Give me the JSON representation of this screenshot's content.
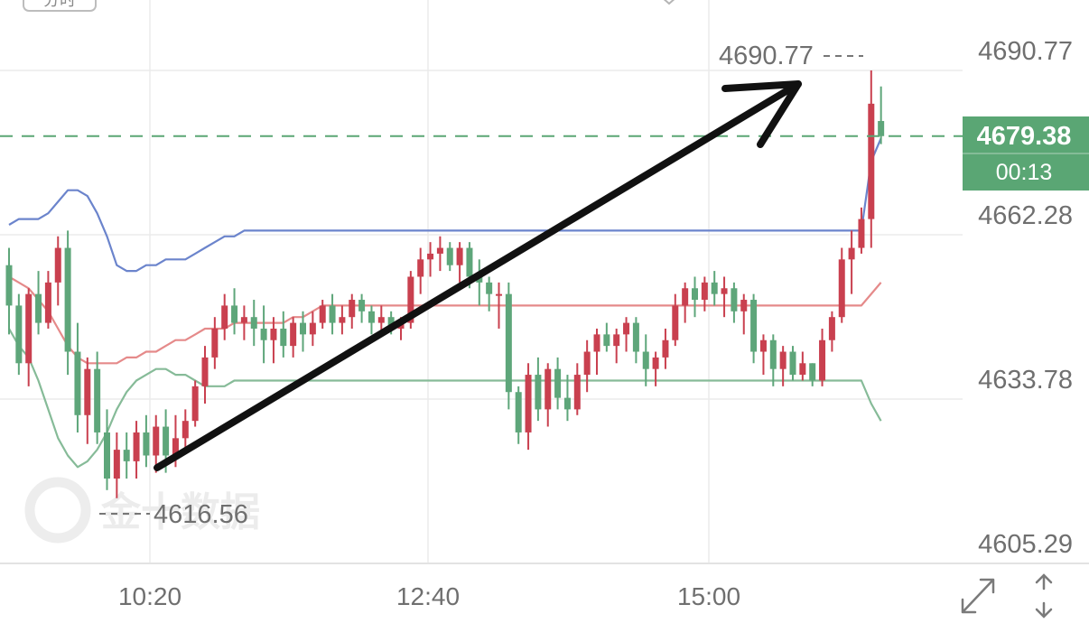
{
  "chart_data": {
    "type": "candlestick",
    "instrument_tab": "分时",
    "watermark": "金十数据",
    "x_ticks": [
      "10:20",
      "12:40",
      "15:00"
    ],
    "y_ticks": [
      4690.77,
      4662.28,
      4633.78,
      4605.29
    ],
    "ylim": [
      4605.29,
      4690.77
    ],
    "grid": true,
    "current_price": "4679.38",
    "countdown": "00:13",
    "high_label": "4690.77",
    "low_label": "4616.56",
    "colors": {
      "up": "#c9404f",
      "down": "#5ea67a",
      "upper_band": "#6b84cc",
      "middle_band": "#e58a8a",
      "lower_band": "#86bb98",
      "price_badge": "#5aa674",
      "annotation_arrow": "#111111",
      "grid": "#ebebeb"
    },
    "candles": [
      [
        4657,
        4660,
        4645,
        4650
      ],
      [
        4650,
        4652,
        4638,
        4640
      ],
      [
        4640,
        4653,
        4636,
        4652
      ],
      [
        4652,
        4656,
        4645,
        4647
      ],
      [
        4647,
        4656,
        4646,
        4654
      ],
      [
        4654,
        4662,
        4650,
        4660
      ],
      [
        4660,
        4663,
        4638,
        4642
      ],
      [
        4642,
        4647,
        4628,
        4631
      ],
      [
        4631,
        4641,
        4626,
        4639
      ],
      [
        4639,
        4642,
        4626,
        4628
      ],
      [
        4628,
        4632,
        4618,
        4620
      ],
      [
        4620,
        4628,
        4616.6,
        4625
      ],
      [
        4625,
        4628,
        4620,
        4623
      ],
      [
        4623,
        4630,
        4620,
        4628
      ],
      [
        4628,
        4631,
        4622,
        4624
      ],
      [
        4624,
        4631,
        4621,
        4629
      ],
      [
        4629,
        4632,
        4621,
        4624
      ],
      [
        4624,
        4631,
        4622,
        4627
      ],
      [
        4627,
        4632,
        4625,
        4630
      ],
      [
        4630,
        4637,
        4629,
        4636
      ],
      [
        4636,
        4643,
        4633,
        4641
      ],
      [
        4641,
        4648,
        4639,
        4646
      ],
      [
        4646,
        4652,
        4644,
        4650
      ],
      [
        4650,
        4653,
        4645,
        4647
      ],
      [
        4647,
        4650,
        4644,
        4648
      ],
      [
        4648,
        4651,
        4643,
        4646
      ],
      [
        4646,
        4650,
        4640,
        4644
      ],
      [
        4644,
        4648,
        4640,
        4646
      ],
      [
        4646,
        4649,
        4641,
        4643
      ],
      [
        4643,
        4648,
        4641,
        4647
      ],
      [
        4647,
        4649,
        4642,
        4645
      ],
      [
        4645,
        4649,
        4643,
        4647
      ],
      [
        4647,
        4651,
        4646,
        4650
      ],
      [
        4650,
        4652,
        4645,
        4647
      ],
      [
        4647,
        4650,
        4645,
        4648
      ],
      [
        4648,
        4652,
        4646,
        4651
      ],
      [
        4651,
        4652,
        4647,
        4649
      ],
      [
        4649,
        4650,
        4645,
        4647
      ],
      [
        4647,
        4650,
        4645,
        4648
      ],
      [
        4648,
        4649,
        4645,
        4646
      ],
      [
        4646,
        4648,
        4644,
        4647
      ],
      [
        4647,
        4656,
        4646,
        4655
      ],
      [
        4655,
        4660,
        4652,
        4658
      ],
      [
        4658,
        4661,
        4655,
        4659
      ],
      [
        4659,
        4662,
        4656,
        4660
      ],
      [
        4660,
        4661,
        4656,
        4657
      ],
      [
        4657,
        4661,
        4654,
        4660
      ],
      [
        4660,
        4661,
        4653,
        4655
      ],
      [
        4655,
        4658,
        4650,
        4654
      ],
      [
        4654,
        4655,
        4649,
        4652
      ],
      [
        4652,
        4654,
        4646,
        4652
      ],
      [
        4652,
        4654,
        4632,
        4635
      ],
      [
        4635,
        4636,
        4626,
        4628
      ],
      [
        4628,
        4640,
        4625,
        4638
      ],
      [
        4638,
        4641,
        4630,
        4632
      ],
      [
        4632,
        4640,
        4629,
        4639
      ],
      [
        4639,
        4641,
        4632,
        4634
      ],
      [
        4634,
        4638,
        4630,
        4632
      ],
      [
        4632,
        4640,
        4631,
        4638
      ],
      [
        4638,
        4644,
        4635,
        4642
      ],
      [
        4642,
        4646,
        4638,
        4645
      ],
      [
        4645,
        4647,
        4642,
        4643
      ],
      [
        4643,
        4646,
        4640,
        4645
      ],
      [
        4645,
        4648,
        4642,
        4647
      ],
      [
        4647,
        4648,
        4640,
        4642
      ],
      [
        4642,
        4645,
        4636,
        4639
      ],
      [
        4639,
        4642,
        4636,
        4641
      ],
      [
        4641,
        4646,
        4639,
        4644
      ],
      [
        4644,
        4652,
        4643,
        4650
      ],
      [
        4650,
        4654,
        4647,
        4653
      ],
      [
        4653,
        4655,
        4648,
        4651
      ],
      [
        4651,
        4655,
        4649,
        4654
      ],
      [
        4654,
        4656,
        4650,
        4652
      ],
      [
        4652,
        4655,
        4648,
        4653
      ],
      [
        4653,
        4654,
        4647,
        4649
      ],
      [
        4649,
        4652,
        4645,
        4651
      ],
      [
        4651,
        4652,
        4640,
        4642
      ],
      [
        4642,
        4645,
        4638,
        4644
      ],
      [
        4644,
        4645,
        4636,
        4639
      ],
      [
        4639,
        4643,
        4636,
        4642
      ],
      [
        4642,
        4643,
        4637,
        4638
      ],
      [
        4638,
        4642,
        4637,
        4640
      ],
      [
        4640,
        4640,
        4636,
        4637
      ],
      [
        4637,
        4646,
        4636,
        4644
      ],
      [
        4644,
        4649,
        4642,
        4648
      ],
      [
        4648,
        4660,
        4647,
        4658
      ],
      [
        4658,
        4663,
        4652,
        4660
      ],
      [
        4660,
        4667,
        4659,
        4665
      ],
      [
        4665,
        4690.77,
        4660,
        4685
      ],
      [
        4682,
        4688,
        4678,
        4679.38
      ]
    ],
    "bands": {
      "upper": [
        4664,
        4665,
        4665,
        4665,
        4666,
        4668,
        4670,
        4670,
        4669,
        4666,
        4662,
        4657,
        4656,
        4656,
        4657,
        4657,
        4658,
        4658,
        4658,
        4659,
        4660,
        4661,
        4662,
        4662,
        4663,
        4663,
        4663,
        4663,
        4663,
        4663,
        4663,
        4663,
        4663,
        4663,
        4663,
        4663,
        4663,
        4663,
        4663,
        4663,
        4663,
        4663,
        4663,
        4663,
        4663,
        4663,
        4663,
        4663,
        4663,
        4663,
        4663,
        4663,
        4663,
        4663,
        4663,
        4663,
        4663,
        4663,
        4663,
        4663,
        4663,
        4663,
        4663,
        4663,
        4663,
        4663,
        4663,
        4663,
        4663,
        4663,
        4663,
        4663,
        4663,
        4663,
        4663,
        4663,
        4663,
        4663,
        4663,
        4663,
        4663,
        4663,
        4663,
        4663,
        4663,
        4663,
        4663,
        4663,
        4675,
        4679
      ],
      "middle": [
        4655,
        4654,
        4653,
        4651,
        4649,
        4646,
        4643,
        4641,
        4640,
        4640,
        4640,
        4640,
        4641,
        4641,
        4642,
        4642,
        4643,
        4644,
        4644,
        4645,
        4646,
        4646,
        4646,
        4647,
        4647,
        4647,
        4647,
        4647,
        4647,
        4648,
        4648,
        4649,
        4650,
        4650,
        4650,
        4650,
        4650,
        4650,
        4650,
        4650,
        4650,
        4650,
        4650,
        4650,
        4650,
        4650,
        4650,
        4650,
        4650,
        4650,
        4650,
        4650,
        4650,
        4650,
        4650,
        4650,
        4650,
        4650,
        4650,
        4650,
        4650,
        4650,
        4650,
        4650,
        4650,
        4650,
        4650,
        4650,
        4650,
        4650,
        4650,
        4650,
        4650,
        4650,
        4650,
        4650,
        4650,
        4650,
        4650,
        4650,
        4650,
        4650,
        4650,
        4650,
        4650,
        4650,
        4650,
        4650,
        4652,
        4654
      ],
      "lower": [
        4646,
        4643,
        4641,
        4637,
        4632,
        4627,
        4624,
        4622,
        4623,
        4625,
        4628,
        4632,
        4635,
        4637,
        4638,
        4639,
        4639,
        4638,
        4638,
        4637,
        4636,
        4636,
        4636,
        4637,
        4637,
        4637,
        4637,
        4637,
        4637,
        4637,
        4637,
        4637,
        4637,
        4637,
        4637,
        4637,
        4637,
        4637,
        4637,
        4637,
        4637,
        4637,
        4637,
        4637,
        4637,
        4637,
        4637,
        4637,
        4637,
        4637,
        4637,
        4637,
        4637,
        4637,
        4637,
        4637,
        4637,
        4637,
        4637,
        4637,
        4637,
        4637,
        4637,
        4637,
        4637,
        4637,
        4637,
        4637,
        4637,
        4637,
        4637,
        4637,
        4637,
        4637,
        4637,
        4637,
        4637,
        4637,
        4637,
        4637,
        4637,
        4637,
        4637,
        4637,
        4637,
        4637,
        4637,
        4637,
        4633,
        4630
      ]
    }
  },
  "controls": {
    "expand_icon": "expand-arrows-icon",
    "vertical_icon": "vertical-arrows-icon"
  }
}
